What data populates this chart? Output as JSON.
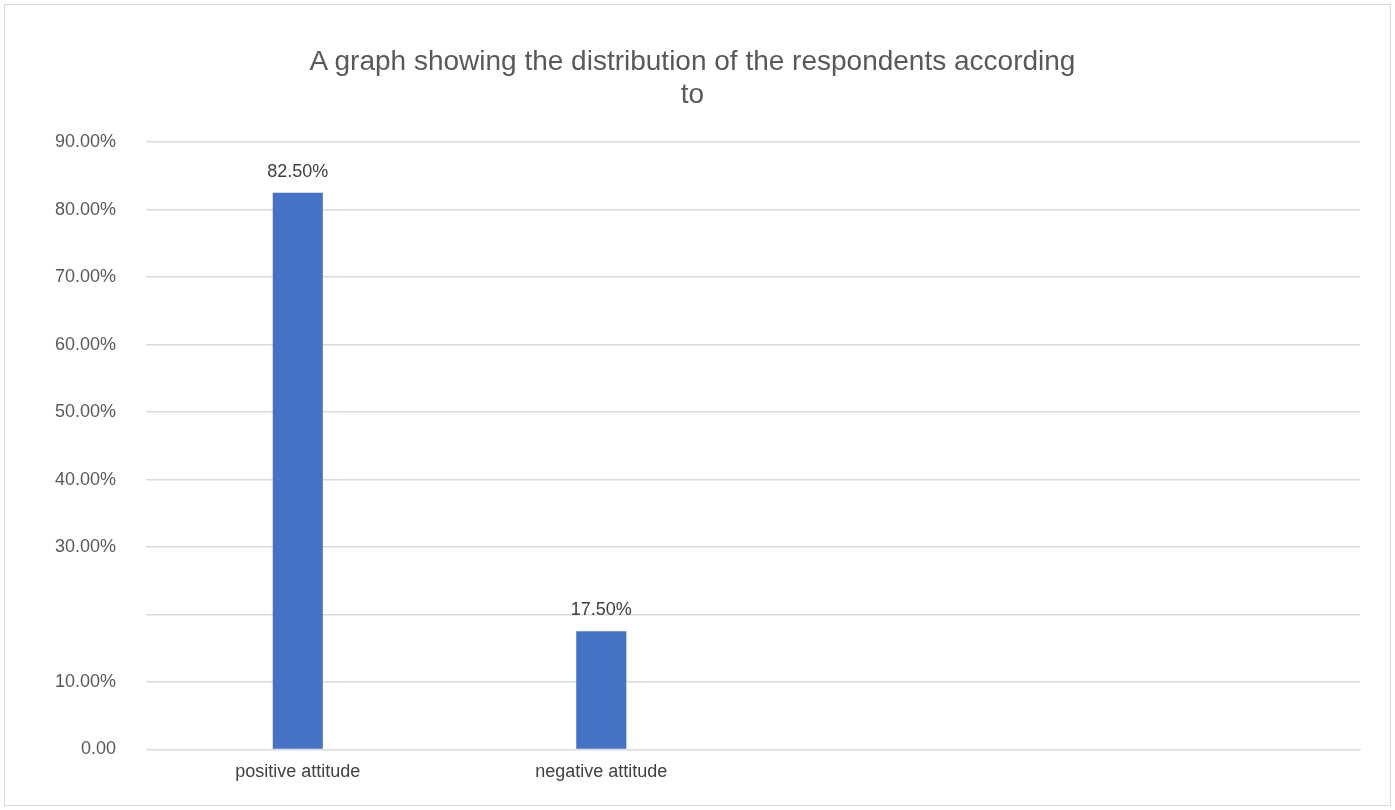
{
  "chart_data": {
    "type": "bar",
    "title": "A graph showing the distribution of the respondents according to",
    "categories": [
      "positive attitude",
      "negative attitude",
      null,
      null
    ],
    "values": [
      82.5,
      17.5,
      null,
      null
    ],
    "value_labels": [
      "82.50%",
      "17.50%",
      null,
      null
    ],
    "color": "#4472c4",
    "ylim": [
      0,
      90
    ],
    "yticks": [
      {
        "value": 0,
        "label": "0.00"
      },
      {
        "value": 10,
        "label": "10.00%"
      },
      {
        "value": 20,
        "label": null
      },
      {
        "value": 30,
        "label": "30.00%"
      },
      {
        "value": 40,
        "label": "40.00%"
      },
      {
        "value": 50,
        "label": "50.00%"
      },
      {
        "value": 60,
        "label": "60.00%"
      },
      {
        "value": 70,
        "label": "70.00%"
      },
      {
        "value": 80,
        "label": "80.00%"
      },
      {
        "value": 90,
        "label": "90.00%"
      }
    ],
    "grid": "y",
    "legend": false
  }
}
